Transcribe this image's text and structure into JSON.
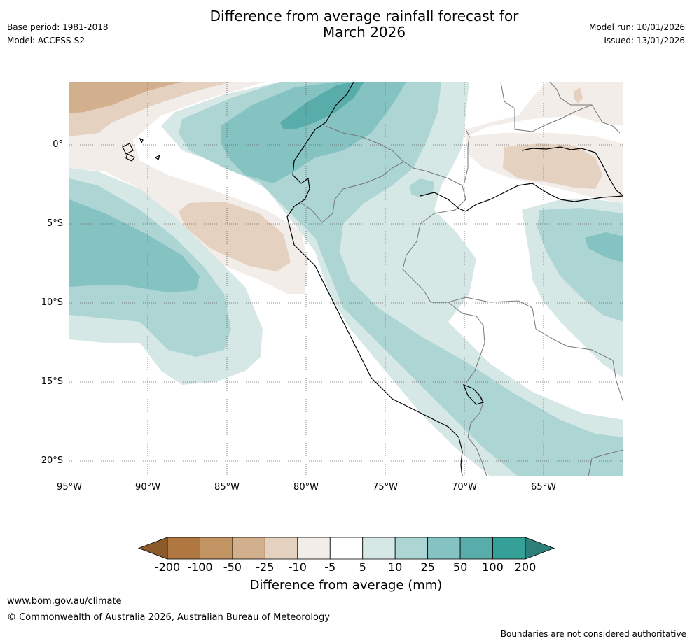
{
  "header": {
    "title_line1": "Difference from average rainfall forecast for",
    "title_line2": "March 2026",
    "base_period": "Base period: 1981-2018",
    "model": "Model: ACCESS-S2",
    "model_run": "Model run: 10/01/2026",
    "issued": "Issued: 13/01/2026"
  },
  "map": {
    "lon_labels": [
      "95°W",
      "90°W",
      "85°W",
      "80°W",
      "75°W",
      "70°W",
      "65°W"
    ],
    "lat_labels": [
      "0°",
      "5°S",
      "10°S",
      "15°S",
      "20°S"
    ]
  },
  "colorbar": {
    "title": "Difference from average (mm)",
    "ticks": [
      "-200",
      "-100",
      "-50",
      "-25",
      "-10",
      "-5",
      "5",
      "10",
      "25",
      "50",
      "100",
      "200"
    ],
    "colors": [
      "#8a5a2b",
      "#b07840",
      "#c29464",
      "#d2af8d",
      "#e5d1bf",
      "#f2ede8",
      "#ffffff",
      "#d6e8e6",
      "#acd5d4",
      "#84c3c1",
      "#58aca9",
      "#35a098",
      "#2e7f7a"
    ]
  },
  "footer": {
    "url": "www.bom.gov.au/climate",
    "copyright": "© Commonwealth of Australia 2026, Australian Bureau of Meteorology",
    "disclaimer": "Boundaries are not considered authoritative"
  }
}
